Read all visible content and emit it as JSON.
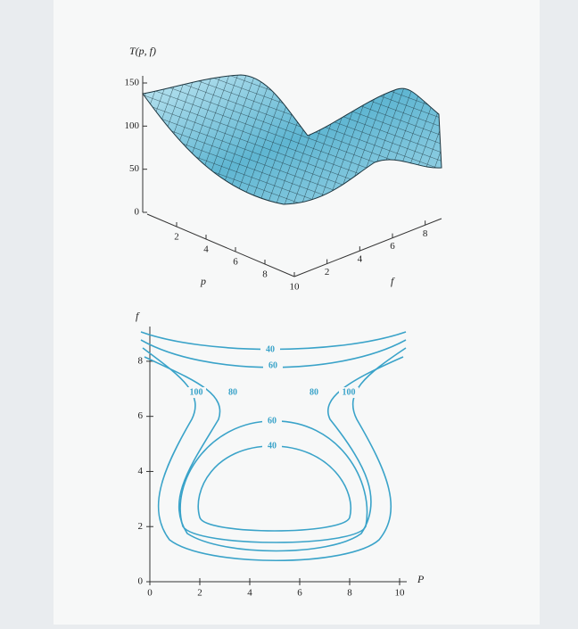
{
  "chart_data": [
    {
      "type": "surface",
      "z_label": "T(p, f)",
      "x_label": "p",
      "y_label": "f",
      "xlim": [
        0,
        10
      ],
      "ylim": [
        0,
        9
      ],
      "zlim": [
        0,
        150
      ],
      "xticks": [
        2,
        4,
        6,
        8,
        10
      ],
      "yticks": [
        2,
        4,
        6,
        8
      ],
      "zticks": [
        0,
        50,
        100,
        150
      ],
      "color": "#6fc3dc"
    },
    {
      "type": "contour",
      "x_label": "P",
      "y_label": "f",
      "xlim": [
        0,
        10
      ],
      "ylim": [
        0,
        9
      ],
      "xticks": [
        0,
        2,
        4,
        6,
        8,
        10
      ],
      "yticks": [
        0,
        2,
        4,
        6,
        8
      ],
      "levels": [
        40,
        60,
        80,
        100
      ],
      "contour_labels": [
        40,
        60,
        100,
        80,
        80,
        100,
        60,
        40
      ],
      "color": "#3aa3c9"
    }
  ]
}
